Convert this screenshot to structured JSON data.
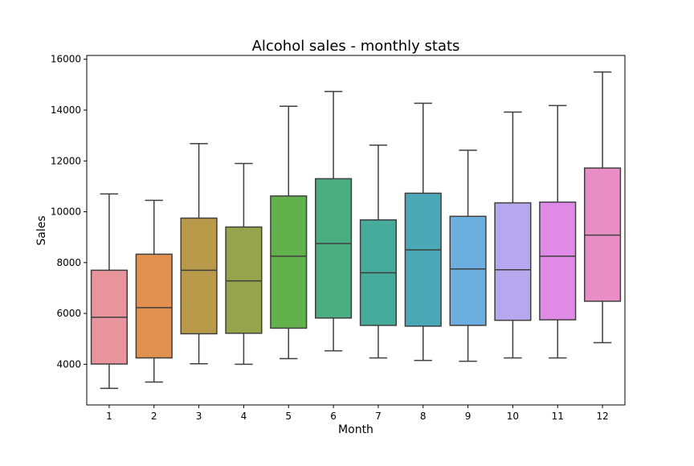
{
  "chart_data": {
    "type": "box",
    "title": "Alcohol sales - monthly stats",
    "xlabel": "Month",
    "ylabel": "Sales",
    "ylim": [
      2400,
      16150
    ],
    "yticks": [
      4000,
      6000,
      8000,
      10000,
      12000,
      14000,
      16000
    ],
    "categories": [
      "1",
      "2",
      "3",
      "4",
      "5",
      "6",
      "7",
      "8",
      "9",
      "10",
      "11",
      "12"
    ],
    "boxes": [
      {
        "month": "1",
        "whisker_low": 3050,
        "q1": 4010,
        "median": 5850,
        "q3": 7700,
        "whisker_high": 10700,
        "color": "#e8949c"
      },
      {
        "month": "2",
        "whisker_low": 3300,
        "q1": 4250,
        "median": 6230,
        "q3": 8330,
        "whisker_high": 10450,
        "color": "#e39150"
      },
      {
        "month": "3",
        "whisker_low": 4020,
        "q1": 5200,
        "median": 7700,
        "q3": 9750,
        "whisker_high": 12680,
        "color": "#b99a4a"
      },
      {
        "month": "4",
        "whisker_low": 4000,
        "q1": 5220,
        "median": 7280,
        "q3": 9400,
        "whisker_high": 11900,
        "color": "#96a44c"
      },
      {
        "month": "5",
        "whisker_low": 4220,
        "q1": 5420,
        "median": 8250,
        "q3": 10620,
        "whisker_high": 14150,
        "color": "#62b14c"
      },
      {
        "month": "6",
        "whisker_low": 4530,
        "q1": 5820,
        "median": 8750,
        "q3": 11300,
        "whisker_high": 14730,
        "color": "#4bad82"
      },
      {
        "month": "7",
        "whisker_low": 4250,
        "q1": 5530,
        "median": 7600,
        "q3": 9680,
        "whisker_high": 12620,
        "color": "#47ab9c"
      },
      {
        "month": "8",
        "whisker_low": 4150,
        "q1": 5500,
        "median": 8500,
        "q3": 10730,
        "whisker_high": 14270,
        "color": "#4ba8b6"
      },
      {
        "month": "9",
        "whisker_low": 4120,
        "q1": 5530,
        "median": 7750,
        "q3": 9820,
        "whisker_high": 12420,
        "color": "#6caee0"
      },
      {
        "month": "10",
        "whisker_low": 4250,
        "q1": 5730,
        "median": 7720,
        "q3": 10350,
        "whisker_high": 13920,
        "color": "#b6a8ee"
      },
      {
        "month": "11",
        "whisker_low": 4250,
        "q1": 5750,
        "median": 8250,
        "q3": 10380,
        "whisker_high": 14180,
        "color": "#e08ae8"
      },
      {
        "month": "12",
        "whisker_low": 4850,
        "q1": 6480,
        "median": 9080,
        "q3": 11720,
        "whisker_high": 15500,
        "color": "#e88ec4"
      }
    ],
    "grid": false,
    "legend": "none"
  }
}
